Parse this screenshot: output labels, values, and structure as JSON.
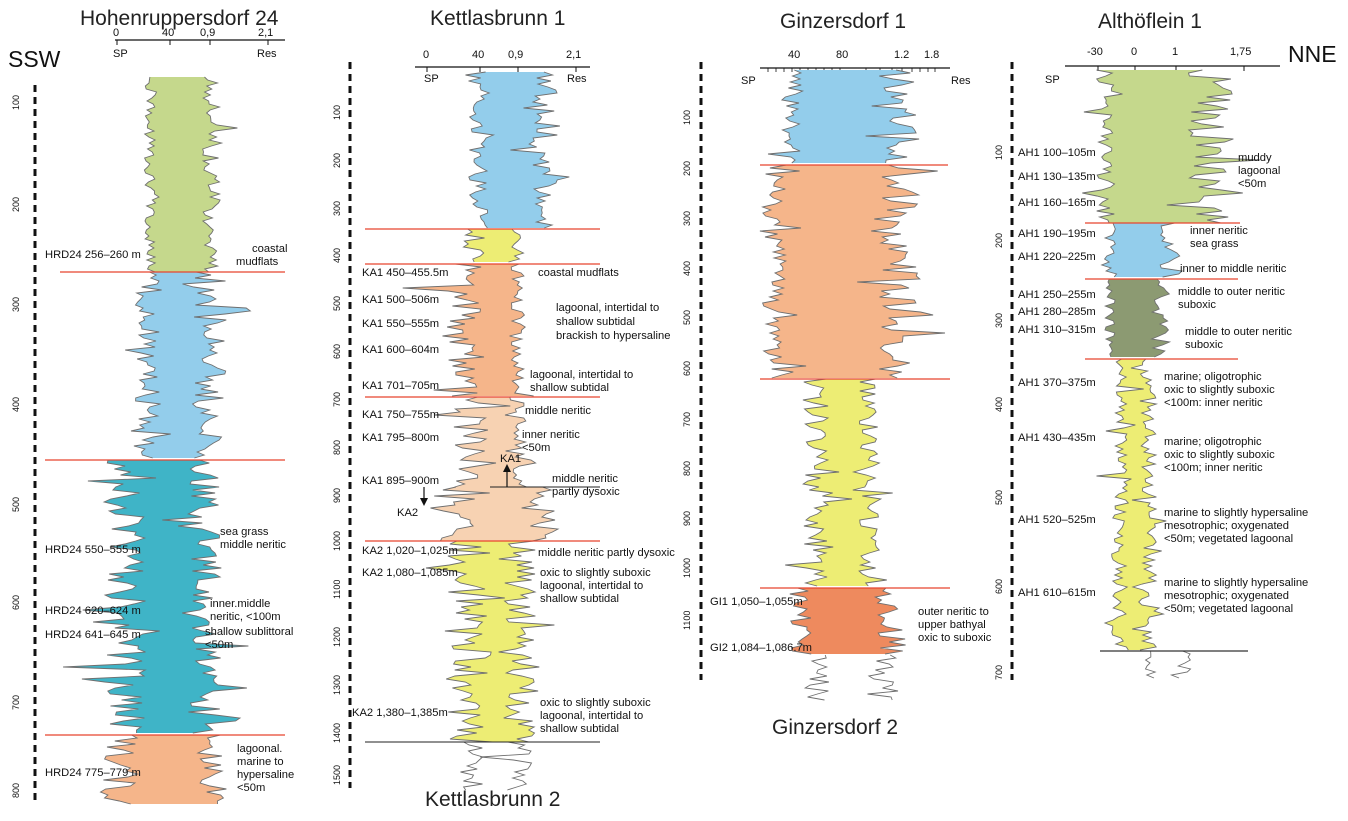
{
  "directions": {
    "left": "SSW",
    "right": "NNE"
  },
  "colors": {
    "green": "#c5d88c",
    "light_blue": "#93cdeb",
    "teal": "#3fb4c7",
    "peach": "#f5b58a",
    "light_peach": "#f7d2b2",
    "yellow": "#eded74",
    "olive": "#8c9a72",
    "orange": "#ee8a5e",
    "boundary": "#e8452f",
    "curve": "#6f6f6f"
  },
  "wells": [
    {
      "title": "Hohenruppersdorf 24",
      "scale_ticks": [
        "0",
        "40",
        "0,9",
        "2,1"
      ],
      "sp_label": "SP",
      "res_label": "Res",
      "depth_ticks": [
        "100",
        "200",
        "300",
        "400",
        "500",
        "600",
        "700",
        "800"
      ],
      "samples": [
        "HRD24 256–260 m",
        "HRD24 550–555 m",
        "HRD24 620–624 m",
        "HRD24 641–645 m",
        "HRD24 775–779 m"
      ],
      "environments": [
        [
          "coastal",
          "mudflats"
        ],
        [
          "sea grass",
          "middle neritic"
        ],
        [
          "inner.middle",
          "neritic, <100m"
        ],
        [
          "shallow sublittoral",
          "<50m"
        ],
        [
          "lagoonal.",
          "marine to",
          "hypersaline",
          "<50m"
        ]
      ]
    },
    {
      "title": "Kettlasbrunn 1",
      "subtitle": "Kettlasbrunn 2",
      "scale_ticks": [
        "0",
        "40",
        "0,9",
        "2,1"
      ],
      "sp_label": "SP",
      "res_label": "Res",
      "depth_ticks": [
        "100",
        "200",
        "300",
        "400",
        "500",
        "600",
        "700",
        "800",
        "900",
        "1000",
        "1100",
        "1200",
        "1300",
        "1400",
        "1500"
      ],
      "samples": [
        "KA1 450–455.5m",
        "KA1 500–506m",
        "KA1 550–555m",
        "KA1 600–604m",
        "KA1 701–705m",
        "KA1 750–755m",
        "KA1 795–800m",
        "KA1 895–900m",
        "KA2 1,020–1,025m",
        "KA2 1,080–1,085m",
        "KA2 1,380–1,385m"
      ],
      "markers": [
        "KA1",
        "KA2"
      ],
      "environments": [
        [
          "coastal mudflats"
        ],
        [
          "lagoonal, intertidal to",
          "shallow subtidal",
          "brackish to hypersaline"
        ],
        [
          "lagoonal, intertidal to",
          "shallow subtidal"
        ],
        [
          "middle neritic"
        ],
        [
          "inner neritic",
          "<50m"
        ],
        [
          "middle neritic",
          "partly dysoxic"
        ],
        [
          "middle neritic partly dysoxic"
        ],
        [
          "oxic to slightly suboxic",
          "lagoonal, intertidal to",
          "shallow subtidal"
        ],
        [
          "oxic to slightly suboxic",
          "lagoonal, intertidal to",
          "shallow subtidal"
        ]
      ]
    },
    {
      "title": "Ginzersdorf 1",
      "subtitle": "Ginzersdorf 2",
      "scale_ticks": [
        "40",
        "80",
        "1.2",
        "1.8"
      ],
      "sp_label": "SP",
      "res_label": "Res",
      "depth_ticks": [
        "100",
        "200",
        "300",
        "400",
        "500",
        "600",
        "700",
        "800",
        "900",
        "1000",
        "1100"
      ],
      "samples": [
        "GI1 1,050–1,055m",
        "GI2 1,084–1,086.7m"
      ],
      "environments": [
        [
          "outer neritic to",
          "upper bathyal",
          "oxic to suboxic"
        ]
      ]
    },
    {
      "title": "Althöflein 1",
      "scale_ticks": [
        "-30",
        "0",
        "1",
        "1,75"
      ],
      "sp_label": "SP",
      "depth_ticks": [
        "100",
        "200",
        "300",
        "400",
        "500",
        "600",
        "700"
      ],
      "samples": [
        "AH1 100–105m",
        "AH1 130–135m",
        "AH1 160–165m",
        "AH1 190–195m",
        "AH1 220–225m",
        "AH1 250–255m",
        "AH1 280–285m",
        "AH1 310–315m",
        "AH1 370–375m",
        "AH1 430–435m",
        "AH1 520–525m",
        "AH1 610–615m"
      ],
      "environments": [
        [
          "muddy",
          "lagoonal",
          "<50m"
        ],
        [
          "inner neritic",
          "sea grass"
        ],
        [
          "inner to middle neritic"
        ],
        [
          "middle to outer neritic",
          "suboxic"
        ],
        [
          "middle to outer neritic",
          "suboxic"
        ],
        [
          "marine; oligotrophic",
          "oxic to slightly suboxic",
          "<100m: inner neritic"
        ],
        [
          "marine; oligotrophic",
          "oxic to slightly suboxic",
          "<100m; inner neritic"
        ],
        [
          "marine to slightly hypersaline",
          "mesotrophic; oxygenated",
          "<50m; vegetated lagoonal"
        ],
        [
          "marine to slightly hypersaline",
          "mesotrophic; oxygenated",
          "<50m; vegetated lagoonal"
        ]
      ]
    }
  ]
}
